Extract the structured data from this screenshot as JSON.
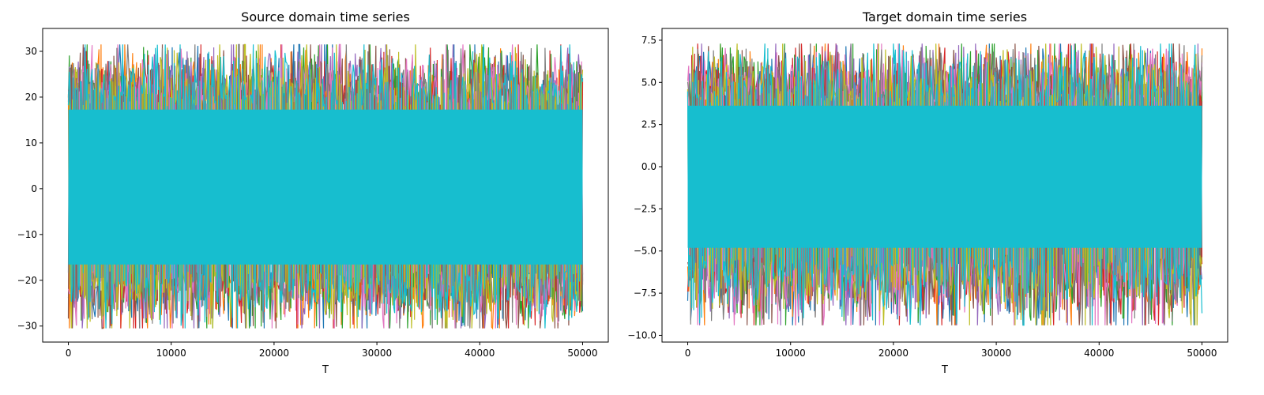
{
  "chart_data": [
    {
      "type": "line",
      "title": "Source domain time series",
      "xlabel": "T",
      "ylabel": "",
      "xlim": [
        -2500,
        52500
      ],
      "ylim": [
        -33.5,
        35
      ],
      "xticks": [
        0,
        10000,
        20000,
        30000,
        40000,
        50000
      ],
      "yticks": [
        -30,
        -20,
        -10,
        0,
        10,
        20,
        30
      ],
      "grid": false,
      "legend": "none",
      "x_range": [
        0,
        50000
      ],
      "envelope": {
        "typical_upper": 18,
        "typical_lower": -18,
        "max": 31.5,
        "min": -30.5
      },
      "series_colors": [
        "#1f77b4",
        "#ff7f0e",
        "#2ca02c",
        "#d62728",
        "#9467bd",
        "#8c564b",
        "#e377c2",
        "#7f7f7f",
        "#bcbd22",
        "#17becf"
      ]
    },
    {
      "type": "line",
      "title": "Target domain time series",
      "xlabel": "T",
      "ylabel": "",
      "xlim": [
        -2500,
        52500
      ],
      "ylim": [
        -10.4,
        8.2
      ],
      "xticks": [
        0,
        10000,
        20000,
        30000,
        40000,
        50000
      ],
      "yticks": [
        -10.0,
        -7.5,
        -5.0,
        -2.5,
        0.0,
        2.5,
        5.0,
        7.5
      ],
      "grid": false,
      "legend": "none",
      "x_range": [
        0,
        50000
      ],
      "envelope": {
        "typical_upper": 3.8,
        "typical_lower": -5.2,
        "max": 7.3,
        "min": -9.4
      },
      "series_colors": [
        "#1f77b4",
        "#ff7f0e",
        "#2ca02c",
        "#d62728",
        "#9467bd",
        "#8c564b",
        "#e377c2",
        "#7f7f7f",
        "#bcbd22",
        "#17becf"
      ]
    }
  ]
}
